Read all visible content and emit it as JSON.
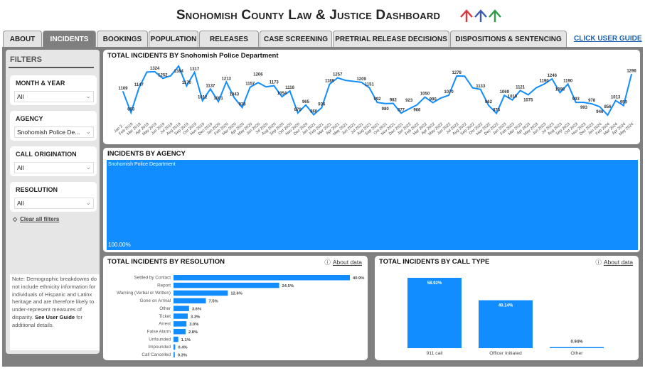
{
  "header": {
    "title": "Snohomish County Law & Justice Dashboard",
    "logo_colors": [
      "#d9363e",
      "#3b5bb5",
      "#2e9b45"
    ]
  },
  "tabs": [
    {
      "label": "ABOUT",
      "active": false
    },
    {
      "label": "INCIDENTS",
      "active": true
    },
    {
      "label": "BOOKINGS",
      "active": false
    },
    {
      "label": "POPULATION",
      "active": false
    },
    {
      "label": "RELEASES",
      "active": false
    },
    {
      "label": "CASE SCREENING",
      "active": false
    },
    {
      "label": "PRETRIAL RELEASE DECISIONS",
      "active": false
    },
    {
      "label": "DISPOSITIONS & SENTENCING",
      "active": false
    }
  ],
  "user_guide_link": "CLICK USER GUIDE",
  "filters": {
    "heading": "FILTERS",
    "items": [
      {
        "label": "MONTH & YEAR",
        "value": "All"
      },
      {
        "label": "AGENCY",
        "value": "Snohomish Police De..."
      },
      {
        "label": "CALL ORIGINATION",
        "value": "All"
      },
      {
        "label": "RESOLUTION",
        "value": "All"
      }
    ],
    "clear_label": "Clear all filters"
  },
  "note": {
    "text": "Note: Demographic breakdowns do not include ethnicity information for individuals of Hispanic and Latinx heritage and are therefore likely to under-represent measures of disparity. ",
    "bold": "See User Guide",
    "tail": " for additional details."
  },
  "accent": "#118dff",
  "about_label": "About data",
  "chart_data": [
    {
      "type": "line",
      "title": "TOTAL INCIDENTS BY Snohomish Police Department",
      "categories": [
        "Jan 2...",
        "Feb 2019",
        "Mar 2019",
        "Apr 2019",
        "May 2019",
        "Jun 2019",
        "Jul 2019",
        "Aug 2019",
        "Sep 2019",
        "Oct 2019",
        "Nov 2019",
        "Dec 2019",
        "Jan 2020",
        "Feb 2020",
        "Mar 2020",
        "Apr 2020",
        "May 2020",
        "Jun 2020",
        "Jul 2020",
        "Aug 2020",
        "Sep 2020",
        "Oct 2020",
        "Nov 2020",
        "Dec 2020",
        "Jan 2021",
        "Feb 2021",
        "Mar 2021",
        "Apr 2021",
        "May 2021",
        "Jun 2021",
        "Jul 2021",
        "Aug 2021",
        "Sep 2021",
        "Oct 2021",
        "Nov 2021",
        "Dec 2021",
        "Jan 2022",
        "Feb 2022",
        "Mar 2022",
        "Apr 2022",
        "May 2022",
        "Jun 2022",
        "Jul 2022",
        "Aug 2022",
        "Sep 2022",
        "Oct 2022",
        "Nov 2022",
        "Dec 2022",
        "Jan 2023",
        "Feb 2023",
        "Mar 2023",
        "Apr 2023",
        "May 2023",
        "Jun 2023",
        "Jul 2023",
        "Aug 2023",
        "Sep 2023",
        "Oct 2023",
        "Nov 2023",
        "Dec 2023",
        "Jan 2024",
        "Feb 2024",
        "Mar 2024",
        "Apr 2024",
        "May 2024"
      ],
      "values": [
        1109,
        883,
        1147,
        1320,
        1324,
        1252,
        1280,
        1384,
        1170,
        1317,
        1012,
        1137,
        1001,
        1213,
        1043,
        938,
        1157,
        1206,
        1160,
        1173,
        1054,
        1116,
        879,
        965,
        860,
        936,
        1189,
        1257,
        1230,
        1220,
        1209,
        1151,
        992,
        980,
        982,
        877,
        923,
        966,
        1050,
        990,
        1040,
        1070,
        1278,
        1275,
        1150,
        1133,
        962,
        875,
        1069,
        1019,
        1121,
        1075,
        1150,
        1190,
        1246,
        1098,
        1190,
        993,
        993,
        978,
        946,
        856,
        1013,
        959,
        1296
      ],
      "unlabeled_points": [
        3,
        6,
        18,
        28,
        29,
        40,
        43,
        44,
        52
      ],
      "color": "#118dff"
    },
    {
      "type": "treemap",
      "title": "INCIDENTS BY AGENCY",
      "items": [
        {
          "label": "Snohomish Police Department",
          "value": "100.00%"
        }
      ]
    },
    {
      "type": "bar",
      "orientation": "horizontal",
      "title": "TOTAL INCIDENTS BY RESOLUTION",
      "categories": [
        "Settled by Contact",
        "Report",
        "Warning (Verbal or Written)",
        "Gone on Arrival",
        "Other",
        "Ticket",
        "Arrest",
        "False Alarm",
        "Unfounded",
        "Impounded",
        "Call Cancelled"
      ],
      "values": [
        40.9,
        24.5,
        12.6,
        7.5,
        3.6,
        3.3,
        3.0,
        2.8,
        1.1,
        0.4,
        0.3
      ],
      "unit": "%"
    },
    {
      "type": "bar",
      "title": "TOTAL INCIDENTS BY CALL TYPE",
      "categories": [
        "911 call",
        "Officer Initiated",
        "Other"
      ],
      "values": [
        58.92,
        40.14,
        0.94
      ],
      "unit": "%"
    }
  ]
}
